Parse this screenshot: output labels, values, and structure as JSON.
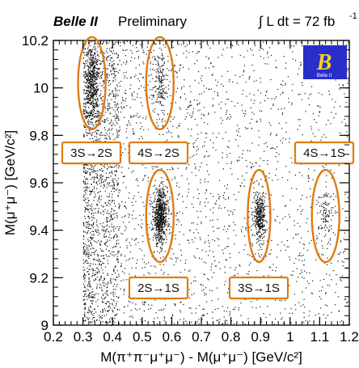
{
  "chart_data": {
    "type": "scatter",
    "header": {
      "experiment": "Belle II",
      "status": "Preliminary",
      "luminosity_expr": "∫ L dt = 72 fb",
      "luminosity_exp": "-1",
      "logo_text": "Belle II"
    },
    "xlabel": "M(π⁺π⁻μ⁺μ⁻) - M(μ⁺μ⁻) [GeV/c²]",
    "ylabel": "M(μ⁺μ⁻) [GeV/c²]",
    "xlim": [
      0.2,
      1.2
    ],
    "ylim": [
      9.0,
      10.2
    ],
    "xticks": [
      "0.2",
      "0.3",
      "0.4",
      "0.5",
      "0.6",
      "0.7",
      "0.8",
      "0.9",
      "1",
      "1.1",
      "1.2"
    ],
    "yticks": [
      "9",
      "9.2",
      "9.4",
      "9.6",
      "9.8",
      "10",
      "10.2"
    ],
    "accent_color": "#e07b14",
    "clusters": [
      {
        "label": "3S→2S",
        "x": 0.33,
        "y": 10.02
      },
      {
        "label": "4S→2S",
        "x": 0.56,
        "y": 10.02
      },
      {
        "label": "2S→1S",
        "x": 0.56,
        "y": 9.46
      },
      {
        "label": "3S→1S",
        "x": 0.895,
        "y": 9.46
      },
      {
        "label": "4S→1S",
        "x": 1.12,
        "y": 9.46
      }
    ]
  }
}
